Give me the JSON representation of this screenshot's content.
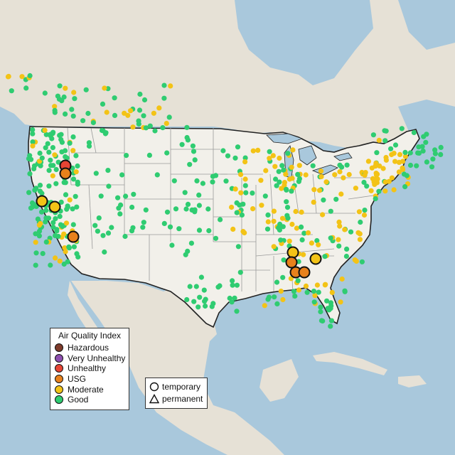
{
  "legend": {
    "title": "Air Quality Index",
    "categories": [
      {
        "label": "Hazardous",
        "color": "#7e3b2b"
      },
      {
        "label": "Very Unhealthy",
        "color": "#8e4fb0"
      },
      {
        "label": "Unhealthy",
        "color": "#e74434"
      },
      {
        "label": "USG",
        "color": "#e8811c"
      },
      {
        "label": "Moderate",
        "color": "#f3c316"
      },
      {
        "label": "Good",
        "color": "#2fcc71"
      }
    ]
  },
  "monitor_types": [
    {
      "label": "temporary",
      "shape": "circle"
    },
    {
      "label": "permanent",
      "shape": "triangle"
    }
  ],
  "colors": {
    "water": "#a9c8dc",
    "land": "#e6e1d6",
    "us_land": "#f2f0ea",
    "border": "#222222",
    "state_line": "#9a9a9a"
  }
}
